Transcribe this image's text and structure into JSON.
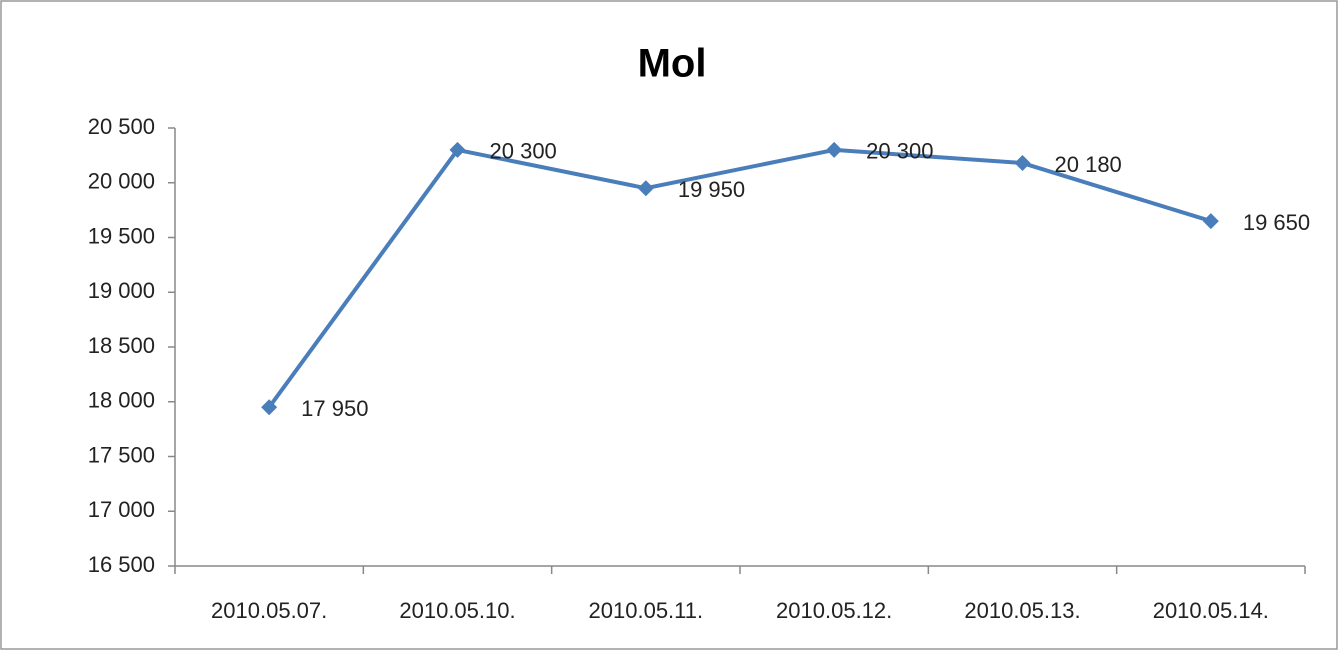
{
  "chart_data": {
    "type": "line",
    "title": "Mol",
    "categories": [
      "2010.05.07.",
      "2010.05.10.",
      "2010.05.11.",
      "2010.05.12.",
      "2010.05.13.",
      "2010.05.14."
    ],
    "values": [
      17950,
      20300,
      19950,
      20300,
      20180,
      19650
    ],
    "value_labels": [
      "17 950",
      "20 300",
      "19 950",
      "20 300",
      "20 180",
      "19 650"
    ],
    "color": "#4a7ebb",
    "ylim": [
      16500,
      20500
    ],
    "yticks": [
      {
        "value": 16500,
        "label": "16 500"
      },
      {
        "value": 17000,
        "label": "17 000"
      },
      {
        "value": 17500,
        "label": "17 500"
      },
      {
        "value": 18000,
        "label": "18 000"
      },
      {
        "value": 18500,
        "label": "18 500"
      },
      {
        "value": 19000,
        "label": "19 000"
      },
      {
        "value": 19500,
        "label": "19 500"
      },
      {
        "value": 20000,
        "label": "20 000"
      },
      {
        "value": 20500,
        "label": "20 500"
      }
    ],
    "grid": false
  }
}
